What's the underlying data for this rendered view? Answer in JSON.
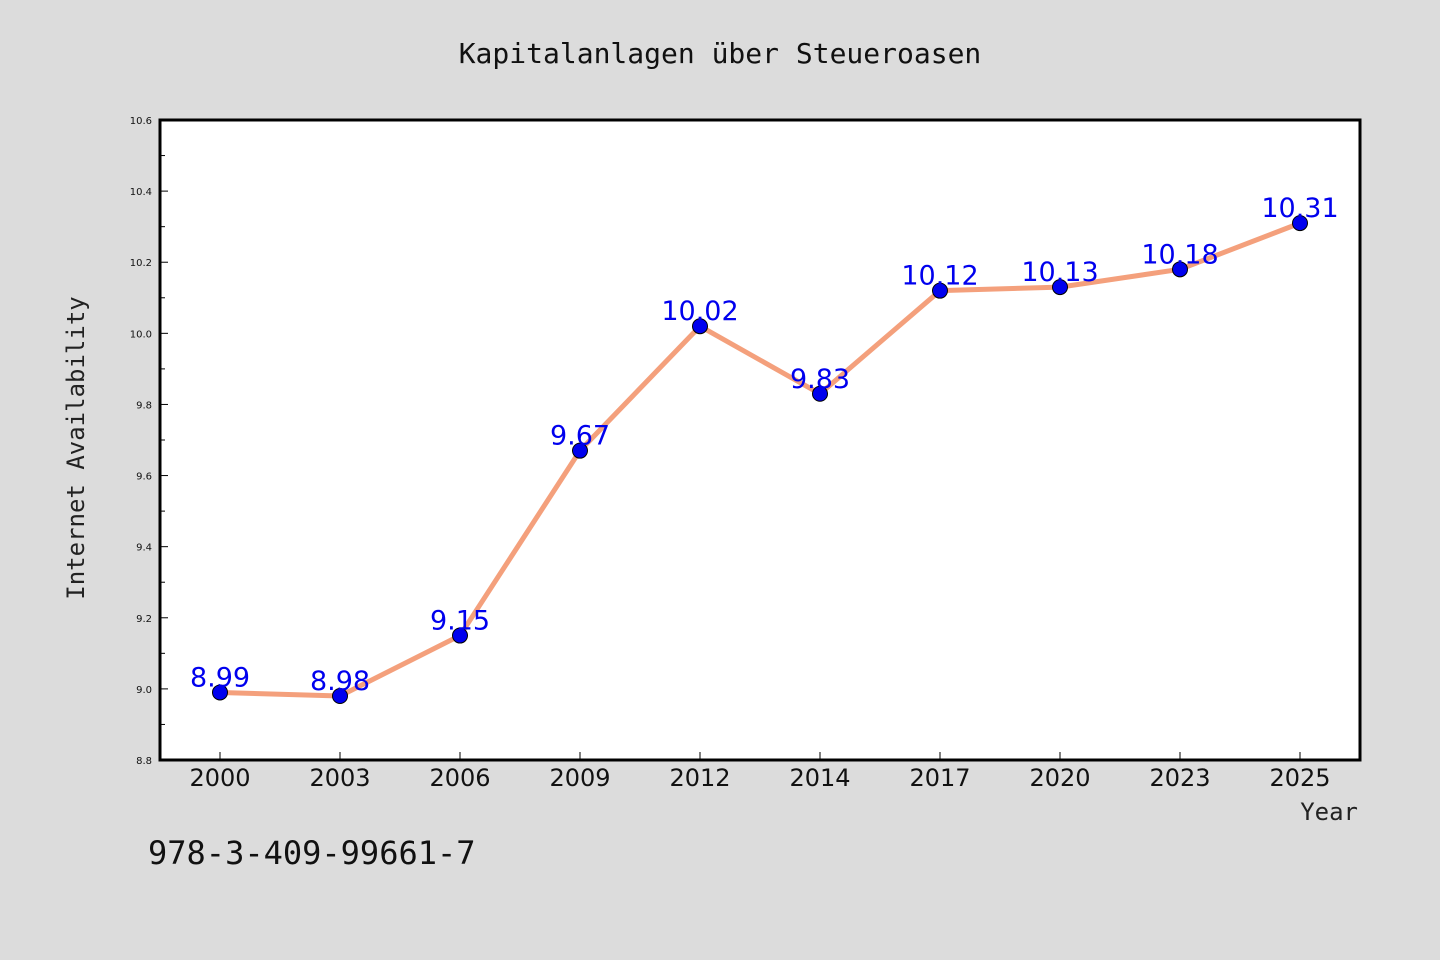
{
  "colors": {
    "page_background": "#dcdcdc",
    "plot_background": "#ffffff",
    "line": "#f4a07c",
    "marker": "#0000ee",
    "data_label": "#0000ee",
    "axis": "#000000"
  },
  "footer_text": "978-3-409-99661-7",
  "chart_data": {
    "type": "line",
    "title": "Kapitalanlagen über Steueroasen",
    "xlabel": "Year",
    "ylabel": "Internet Availability",
    "categories": [
      "2000",
      "2003",
      "2006",
      "2009",
      "2012",
      "2014",
      "2017",
      "2020",
      "2023",
      "2025"
    ],
    "series": [
      {
        "values": [
          8.99,
          8.98,
          9.15,
          9.67,
          10.02,
          9.83,
          10.12,
          10.13,
          10.18,
          10.31
        ],
        "labels": [
          "8.99",
          "8.98",
          "9.15",
          "9.67",
          "10.02",
          "9.83",
          "10.12",
          "10.13",
          "10.18",
          "10.31"
        ]
      }
    ],
    "ylim": [
      8.8,
      10.6
    ],
    "yticks": [
      "8.8",
      "9.0",
      "9.2",
      "9.4",
      "9.6",
      "9.8",
      "10.0",
      "10.2",
      "10.4",
      "10.6"
    ],
    "grid": false,
    "legend": "none",
    "markers": true,
    "data_labels": true
  }
}
